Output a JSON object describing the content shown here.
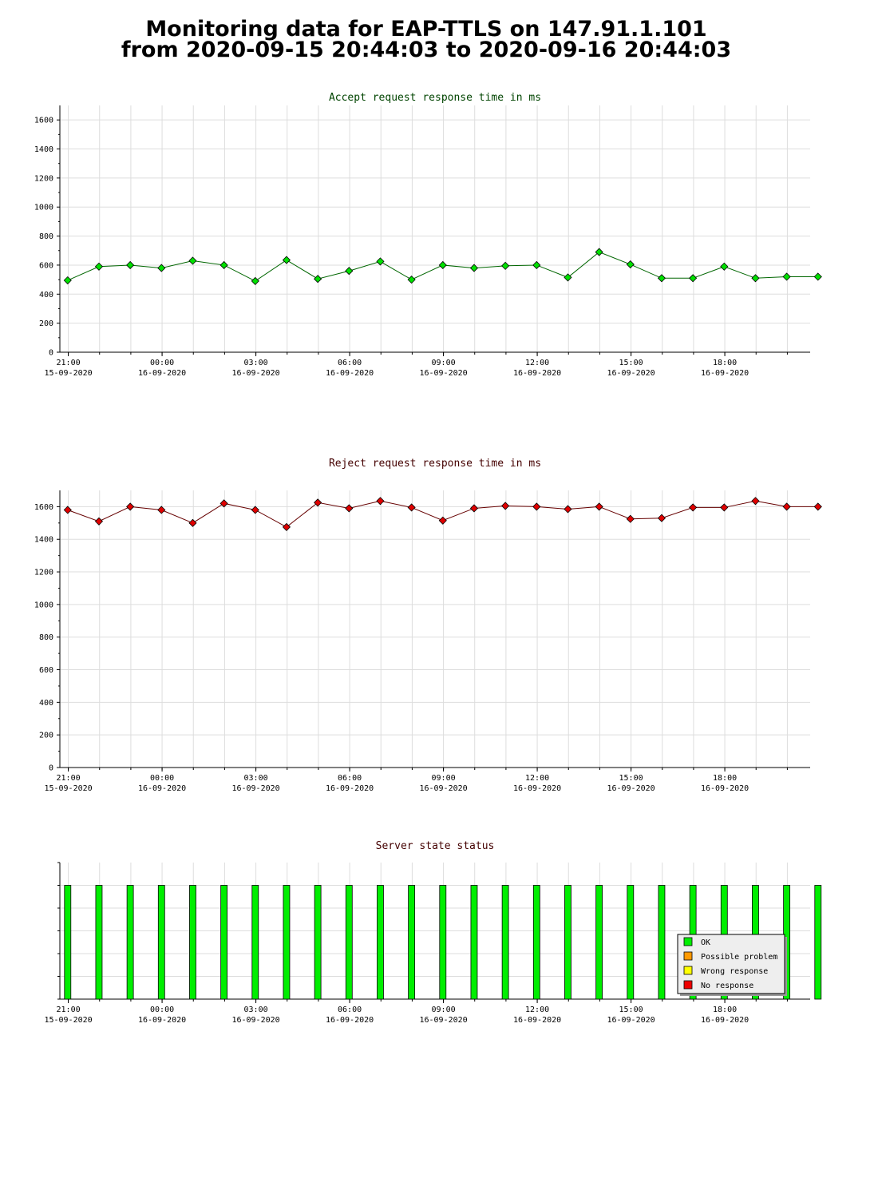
{
  "page": {
    "title_line1": "Monitoring data for EAP-TTLS on 147.91.1.101",
    "title_line2": "from 2020-09-15 20:44:03 to 2020-09-16 20:44:03"
  },
  "colors": {
    "accept_line": "#006600",
    "accept_marker": "#00e000",
    "reject_line": "#660000",
    "reject_marker": "#e00000",
    "ok": "#00ee00",
    "possible_problem": "#ff9900",
    "wrong_response": "#ffff00",
    "no_response": "#ee0000",
    "grid": "#dddddd",
    "accept_title": "#004400",
    "reject_title": "#440000"
  },
  "chart_data": [
    {
      "type": "line",
      "title": "Accept request response time in ms",
      "xlabel": "",
      "ylabel": "",
      "ylim": [
        0,
        1700
      ],
      "yticks": [
        0,
        200,
        400,
        600,
        800,
        1000,
        1200,
        1400,
        1600
      ],
      "xlim_hours": [
        20.73,
        44.73
      ],
      "xticks": [
        {
          "hour": 21,
          "time": "21:00",
          "date": "15-09-2020"
        },
        {
          "hour": 24,
          "time": "00:00",
          "date": "16-09-2020"
        },
        {
          "hour": 27,
          "time": "03:00",
          "date": "16-09-2020"
        },
        {
          "hour": 30,
          "time": "06:00",
          "date": "16-09-2020"
        },
        {
          "hour": 33,
          "time": "09:00",
          "date": "16-09-2020"
        },
        {
          "hour": 36,
          "time": "12:00",
          "date": "16-09-2020"
        },
        {
          "hour": 39,
          "time": "15:00",
          "date": "16-09-2020"
        },
        {
          "hour": 42,
          "time": "18:00",
          "date": "16-09-2020"
        }
      ],
      "grid": true,
      "series": [
        {
          "x_hours": [
            20.98,
            21.98,
            22.98,
            23.98,
            24.98,
            25.98,
            26.98,
            27.98,
            28.98,
            29.98,
            30.98,
            31.98,
            32.98,
            33.98,
            34.98,
            35.98,
            36.98,
            37.98,
            38.98,
            39.98,
            40.98,
            41.98,
            42.98,
            43.98,
            44.98
          ],
          "values": [
            495,
            590,
            600,
            580,
            630,
            600,
            490,
            635,
            505,
            560,
            625,
            500,
            600,
            580,
            595,
            600,
            515,
            690,
            605,
            510,
            510,
            590,
            510,
            520,
            520
          ]
        }
      ]
    },
    {
      "type": "line",
      "title": "Reject request response time in ms",
      "xlabel": "",
      "ylabel": "",
      "ylim": [
        0,
        1700
      ],
      "yticks": [
        0,
        200,
        400,
        600,
        800,
        1000,
        1200,
        1400,
        1600
      ],
      "xlim_hours": [
        20.73,
        44.73
      ],
      "xticks": [
        {
          "hour": 21,
          "time": "21:00",
          "date": "15-09-2020"
        },
        {
          "hour": 24,
          "time": "00:00",
          "date": "16-09-2020"
        },
        {
          "hour": 27,
          "time": "03:00",
          "date": "16-09-2020"
        },
        {
          "hour": 30,
          "time": "06:00",
          "date": "16-09-2020"
        },
        {
          "hour": 33,
          "time": "09:00",
          "date": "16-09-2020"
        },
        {
          "hour": 36,
          "time": "12:00",
          "date": "16-09-2020"
        },
        {
          "hour": 39,
          "time": "15:00",
          "date": "16-09-2020"
        },
        {
          "hour": 42,
          "time": "18:00",
          "date": "16-09-2020"
        }
      ],
      "grid": true,
      "series": [
        {
          "x_hours": [
            20.98,
            21.98,
            22.98,
            23.98,
            24.98,
            25.98,
            26.98,
            27.98,
            28.98,
            29.98,
            30.98,
            31.98,
            32.98,
            33.98,
            34.98,
            35.98,
            36.98,
            37.98,
            38.98,
            39.98,
            40.98,
            41.98,
            42.98,
            43.98,
            44.98
          ],
          "values": [
            1580,
            1510,
            1600,
            1580,
            1500,
            1620,
            1580,
            1475,
            1625,
            1590,
            1635,
            1595,
            1515,
            1590,
            1605,
            1600,
            1585,
            1600,
            1525,
            1530,
            1595,
            1595,
            1635,
            1600,
            1600
          ]
        }
      ]
    },
    {
      "type": "bar",
      "title": "Server state status",
      "xlabel": "",
      "ylabel": "",
      "xlim_hours": [
        20.73,
        44.73
      ],
      "xticks": [
        {
          "hour": 21,
          "time": "21:00",
          "date": "15-09-2020"
        },
        {
          "hour": 24,
          "time": "00:00",
          "date": "16-09-2020"
        },
        {
          "hour": 27,
          "time": "03:00",
          "date": "16-09-2020"
        },
        {
          "hour": 30,
          "time": "06:00",
          "date": "16-09-2020"
        },
        {
          "hour": 33,
          "time": "09:00",
          "date": "16-09-2020"
        },
        {
          "hour": 36,
          "time": "12:00",
          "date": "16-09-2020"
        },
        {
          "hour": 39,
          "time": "15:00",
          "date": "16-09-2020"
        },
        {
          "hour": 42,
          "time": "18:00",
          "date": "16-09-2020"
        }
      ],
      "x_hours": [
        20.98,
        21.98,
        22.98,
        23.98,
        24.98,
        25.98,
        26.98,
        27.98,
        28.98,
        29.98,
        30.98,
        31.98,
        32.98,
        33.98,
        34.98,
        35.98,
        36.98,
        37.98,
        38.98,
        39.98,
        40.98,
        41.98,
        42.98,
        43.98,
        44.98
      ],
      "states": [
        "OK",
        "OK",
        "OK",
        "OK",
        "OK",
        "OK",
        "OK",
        "OK",
        "OK",
        "OK",
        "OK",
        "OK",
        "OK",
        "OK",
        "OK",
        "OK",
        "OK",
        "OK",
        "OK",
        "OK",
        "OK",
        "OK",
        "OK",
        "OK",
        "OK"
      ],
      "legend_placement": "bottom-right",
      "legend": [
        {
          "label": "OK",
          "color_key": "ok"
        },
        {
          "label": "Possible problem",
          "color_key": "possible_problem"
        },
        {
          "label": "Wrong response",
          "color_key": "wrong_response"
        },
        {
          "label": "No response",
          "color_key": "no_response"
        }
      ]
    }
  ]
}
